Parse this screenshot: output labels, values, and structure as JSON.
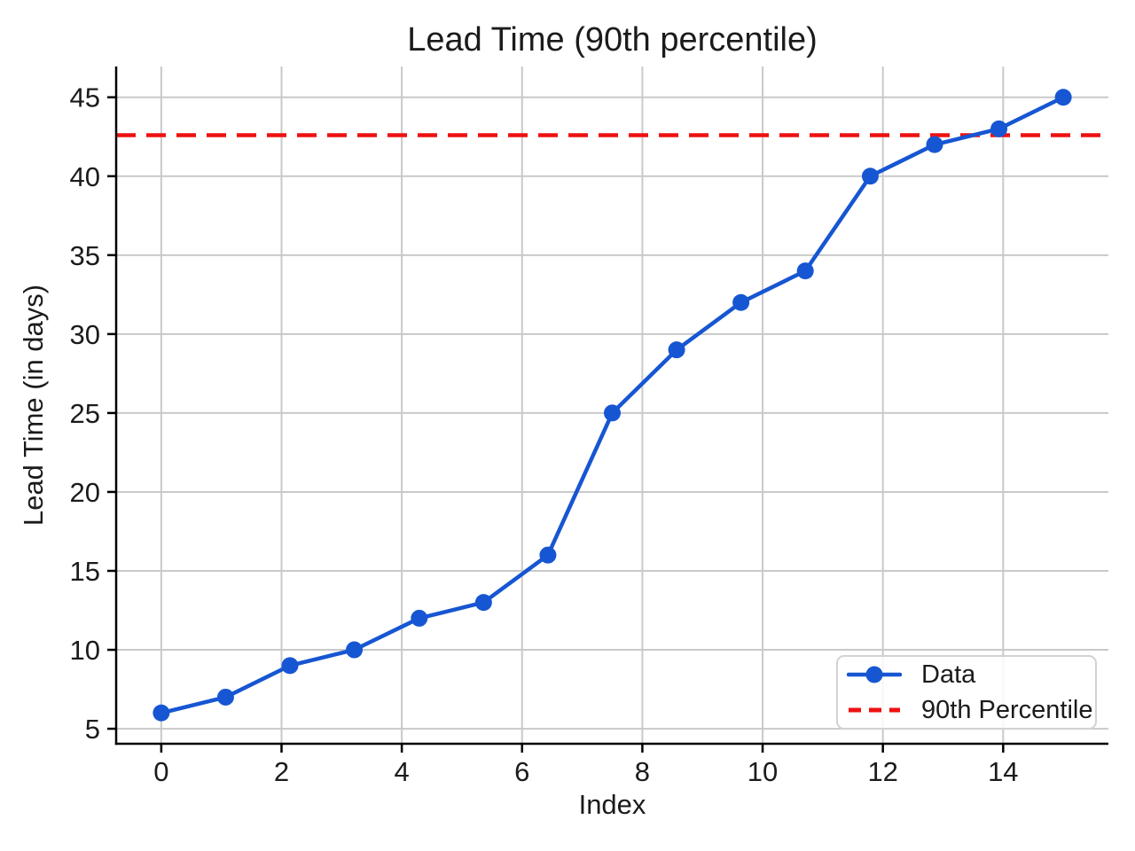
{
  "figure": {
    "title": "Lead Time (90th percentile)",
    "xlabel": "Index",
    "ylabel": "Lead Time (in days)"
  },
  "legend": {
    "items": [
      {
        "label": "Data",
        "style": "solid-line-marker",
        "color": "#1656d2"
      },
      {
        "label": "90th Percentile",
        "style": "dashed-line",
        "color": "#ee1111"
      }
    ]
  },
  "chart_data": {
    "type": "line",
    "title": "Lead Time (90th percentile)",
    "xlabel": "Index",
    "ylabel": "Lead Time (in days)",
    "x": [
      0,
      1.07,
      2.14,
      3.21,
      4.29,
      5.36,
      6.43,
      7.5,
      8.57,
      9.64,
      10.71,
      11.79,
      12.86,
      13.93,
      15
    ],
    "series": [
      {
        "name": "Data",
        "kind": "line-with-markers",
        "values": [
          6,
          7,
          9,
          10,
          12,
          13,
          16,
          25,
          29,
          32,
          34,
          40,
          42,
          43,
          45
        ],
        "color": "#1656d2"
      },
      {
        "name": "90th Percentile",
        "kind": "horizontal-dashed-line",
        "value": 42.6,
        "color": "#ee1111"
      }
    ],
    "xticks": [
      0,
      2,
      4,
      6,
      8,
      10,
      12,
      14
    ],
    "yticks": [
      5,
      10,
      15,
      20,
      25,
      30,
      35,
      40,
      45
    ],
    "xlim": [
      -0.75,
      15.75
    ],
    "ylim": [
      4.05,
      46.95
    ],
    "grid": true,
    "legend_position": "lower right",
    "colors": {
      "data": "#1656d2",
      "percentile": "#ee1111",
      "grid": "#c9c9c9",
      "spine": "#000000",
      "text": "#1b1b1b"
    }
  }
}
